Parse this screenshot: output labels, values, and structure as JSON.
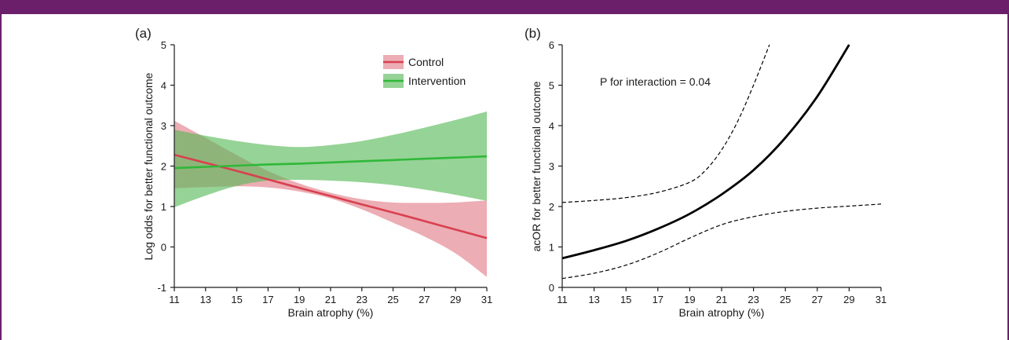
{
  "colors": {
    "frame": "#6b1f6b",
    "control": "#d9404f",
    "control_band": "#e07b86",
    "intervention": "#2fb83a",
    "intervention_band": "#55b855",
    "line_b": "#000000"
  },
  "chart_data": [
    {
      "panel_label": "(a)",
      "type": "line",
      "xlabel": "Brain atrophy (%)",
      "ylabel": "Log odds for better functional outcome",
      "xlim": [
        11,
        31
      ],
      "ylim": [
        -1,
        5
      ],
      "xticks": [
        11,
        13,
        15,
        17,
        19,
        21,
        23,
        25,
        27,
        29,
        31
      ],
      "yticks": [
        -1,
        0,
        1,
        2,
        3,
        4,
        5
      ],
      "grid": false,
      "legend_position": "top-right",
      "series": [
        {
          "name": "Control",
          "color": "#d9404f",
          "band_color": "#e07b86",
          "x": [
            11,
            13,
            15,
            17,
            19,
            21,
            23,
            25,
            27,
            29,
            31
          ],
          "y": [
            2.28,
            2.08,
            1.88,
            1.67,
            1.46,
            1.26,
            1.05,
            0.85,
            0.64,
            0.43,
            0.22
          ],
          "lower": [
            1.45,
            1.48,
            1.5,
            1.47,
            1.37,
            1.2,
            0.93,
            0.6,
            0.26,
            -0.16,
            -0.74
          ],
          "upper": [
            3.12,
            2.7,
            2.27,
            1.88,
            1.57,
            1.34,
            1.18,
            1.1,
            1.09,
            1.1,
            1.15
          ]
        },
        {
          "name": "Intervention",
          "color": "#2fb83a",
          "band_color": "#55b855",
          "x": [
            11,
            13,
            15,
            17,
            19,
            21,
            23,
            25,
            27,
            29,
            31
          ],
          "y": [
            1.95,
            1.98,
            2.01,
            2.04,
            2.06,
            2.09,
            2.12,
            2.15,
            2.18,
            2.21,
            2.24
          ],
          "lower": [
            0.98,
            1.27,
            1.51,
            1.64,
            1.66,
            1.64,
            1.6,
            1.53,
            1.42,
            1.29,
            1.14
          ],
          "upper": [
            2.9,
            2.75,
            2.62,
            2.52,
            2.47,
            2.52,
            2.62,
            2.77,
            2.95,
            3.14,
            3.35
          ]
        }
      ]
    },
    {
      "panel_label": "(b)",
      "type": "line",
      "xlabel": "Brain atrophy (%)",
      "ylabel": "acOR for better functional outcome",
      "xlim": [
        11,
        31
      ],
      "ylim": [
        0,
        6
      ],
      "xticks": [
        11,
        13,
        15,
        17,
        19,
        21,
        23,
        25,
        27,
        29,
        31
      ],
      "yticks": [
        0,
        1,
        2,
        3,
        4,
        5,
        6
      ],
      "grid": false,
      "annotation": "P for interaction = 0.04",
      "series": [
        {
          "role": "estimate",
          "line_style": "solid",
          "x": [
            11,
            13,
            15,
            17,
            19,
            21,
            23,
            25,
            27,
            29
          ],
          "y": [
            0.72,
            0.92,
            1.15,
            1.45,
            1.82,
            2.3,
            2.9,
            3.7,
            4.72,
            6.0
          ]
        },
        {
          "role": "upper-ci",
          "line_style": "dashed",
          "x": [
            11,
            13,
            15,
            17,
            19,
            20,
            21,
            22,
            23,
            24
          ],
          "y": [
            2.1,
            2.15,
            2.22,
            2.35,
            2.6,
            2.9,
            3.4,
            4.1,
            5.0,
            6.0
          ]
        },
        {
          "role": "lower-ci",
          "line_style": "dashed",
          "x": [
            11,
            13,
            15,
            17,
            19,
            21,
            23,
            25,
            27,
            29,
            31
          ],
          "y": [
            0.22,
            0.35,
            0.55,
            0.85,
            1.22,
            1.55,
            1.75,
            1.88,
            1.96,
            2.01,
            2.06
          ]
        }
      ]
    }
  ]
}
